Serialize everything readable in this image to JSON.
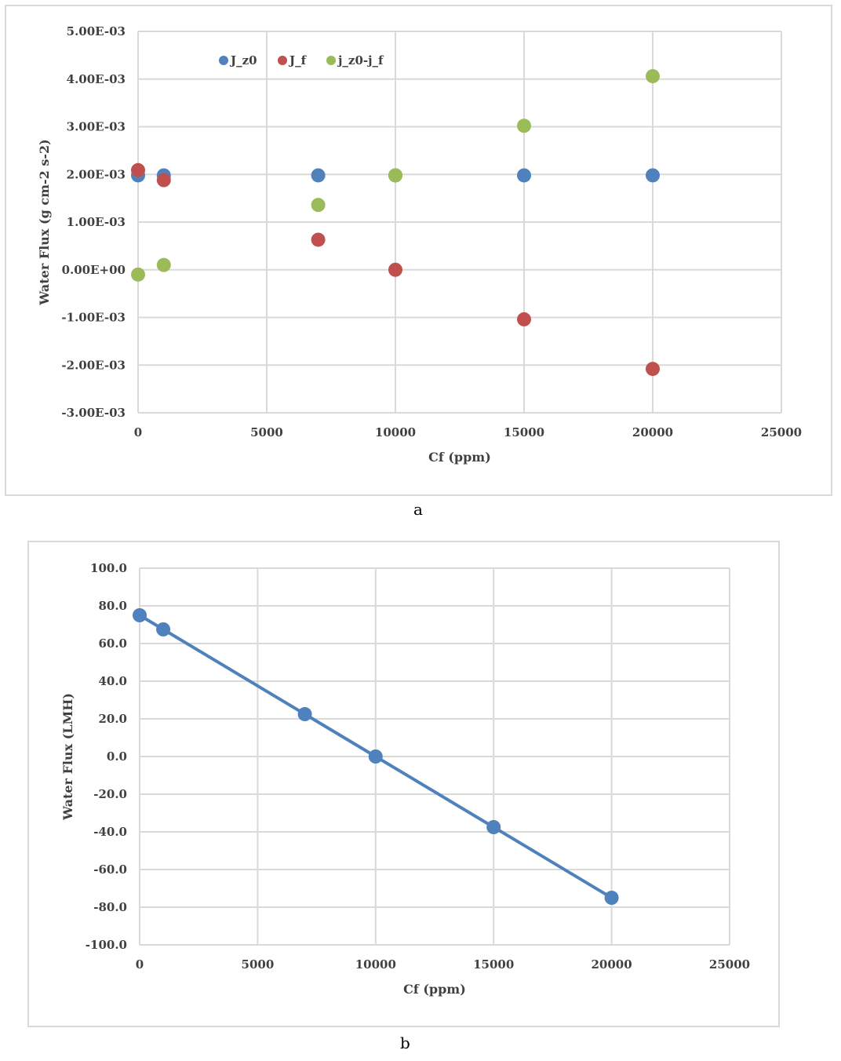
{
  "captions": {
    "a": "a",
    "b": "b"
  },
  "chart_data": [
    {
      "type": "scatter",
      "title": "",
      "xlabel": "Cf (ppm)",
      "ylabel": "Water Flux (g cm-2 s-2)",
      "xlim": [
        0,
        25000
      ],
      "ylim": [
        -0.003,
        0.005
      ],
      "xticks": [
        0,
        5000,
        10000,
        15000,
        20000,
        25000
      ],
      "xtick_labels": [
        "0",
        "5000",
        "10000",
        "15000",
        "20000",
        "25000"
      ],
      "yticks": [
        0.005,
        0.004,
        0.003,
        0.002,
        0.001,
        0.0,
        -0.001,
        -0.002,
        -0.003
      ],
      "ytick_labels": [
        "5.00E-03",
        "4.00E-03",
        "3.00E-03",
        "2.00E-03",
        "1.00E-03",
        "0.00E+00",
        "-1.00E-03",
        "-2.00E-03",
        "-3.00E-03"
      ],
      "grid": true,
      "legend": "top-left",
      "series": [
        {
          "name": "J_z0",
          "color": "#4f81bd",
          "x": [
            0,
            1000,
            7000,
            10000,
            15000,
            20000
          ],
          "y": [
            0.00198,
            0.00198,
            0.00198,
            0.00198,
            0.00198,
            0.00198
          ]
        },
        {
          "name": "J_f",
          "color": "#c0504d",
          "x": [
            0,
            1000,
            7000,
            10000,
            15000,
            20000
          ],
          "y": [
            0.00209,
            0.00188,
            0.00063,
            0.0,
            -0.00104,
            -0.00208
          ]
        },
        {
          "name": "j_z0-j_f",
          "color": "#9bbb59",
          "x": [
            0,
            1000,
            7000,
            10000,
            15000,
            20000
          ],
          "y": [
            -0.0001,
            0.0001,
            0.00136,
            0.00198,
            0.00302,
            0.00406
          ]
        }
      ]
    },
    {
      "type": "line",
      "title": "",
      "xlabel": "Cf (ppm)",
      "ylabel": "Water Flux (LMH)",
      "xlim": [
        0,
        25000
      ],
      "ylim": [
        -100,
        100
      ],
      "xticks": [
        0,
        5000,
        10000,
        15000,
        20000,
        25000
      ],
      "xtick_labels": [
        "0",
        "5000",
        "10000",
        "15000",
        "20000",
        "25000"
      ],
      "yticks": [
        100,
        80,
        60,
        40,
        20,
        0,
        -20,
        -40,
        -60,
        -80,
        -100
      ],
      "ytick_labels": [
        "100.0",
        "80.0",
        "60.0",
        "40.0",
        "20.0",
        "0.0",
        "-20.0",
        "-40.0",
        "-60.0",
        "-80.0",
        "-100.0"
      ],
      "grid": true,
      "series": [
        {
          "color": "#4f81bd",
          "x": [
            0,
            1000,
            7000,
            10000,
            15000,
            20000
          ],
          "y": [
            75.0,
            67.5,
            22.5,
            0.0,
            -37.5,
            -75.0
          ]
        }
      ]
    }
  ]
}
